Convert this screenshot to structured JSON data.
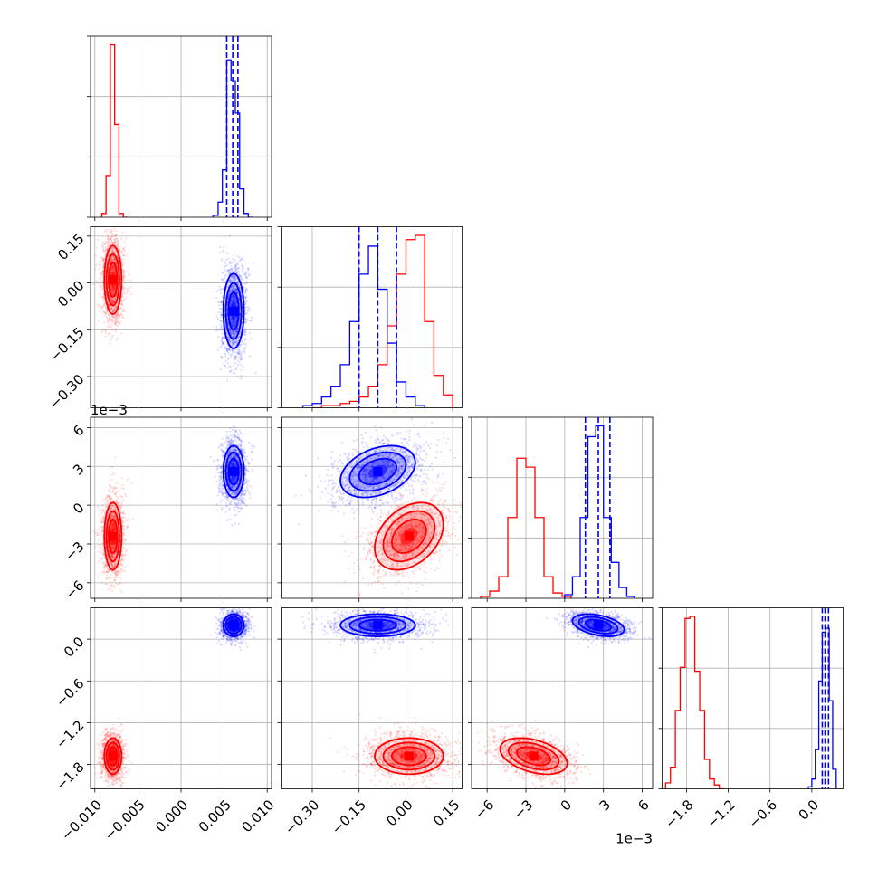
{
  "chart_data": {
    "type": "corner",
    "title": "",
    "grid": true,
    "legend": "none",
    "parameters": [
      {
        "name": "",
        "range": [
          -0.0105,
          0.0105
        ],
        "ticks": [
          -0.01,
          -0.005,
          0.0,
          0.005,
          0.01
        ],
        "tick_labels": [
          "−0.010",
          "−0.005",
          "0.000",
          "0.005",
          "0.010"
        ]
      },
      {
        "name": "",
        "range": [
          -0.4,
          0.18
        ],
        "ticks": [
          -0.3,
          -0.15,
          0.0,
          0.15
        ],
        "tick_labels": [
          "−0.30",
          "−0.15",
          "0.00",
          "0.15"
        ]
      },
      {
        "name": "",
        "range": [
          -0.0072,
          0.0068
        ],
        "ticks": [
          -0.006,
          -0.003,
          0.0,
          0.003,
          0.006
        ],
        "tick_labels": [
          "−6",
          "−3",
          "0",
          "3",
          "6"
        ],
        "offset_label": "1e−3"
      },
      {
        "name": "",
        "range": [
          -2.15,
          0.45
        ],
        "ticks": [
          -1.8,
          -1.2,
          -0.6,
          0.0
        ],
        "tick_labels": [
          "−1.8",
          "−1.2",
          "−0.6",
          "0.0"
        ]
      }
    ],
    "series": [
      {
        "name": "",
        "color": "#ff0000",
        "mean": [
          -0.0079,
          0.01,
          -0.0024,
          -1.68
        ],
        "std": [
          0.0005,
          0.055,
          0.0013,
          0.13
        ],
        "histograms": [
          {
            "edges": [
              -0.0092,
              -0.0087,
              -0.0082,
              -0.0077,
              -0.0072,
              -0.0067,
              -0.0062
            ],
            "counts": [
              0.02,
              0.22,
              0.91,
              0.49,
              0.02,
              0.0
            ]
          },
          {
            "edges": [
              -0.3,
              -0.27,
              -0.24,
              -0.21,
              -0.18,
              -0.15,
              -0.12,
              -0.09,
              -0.06,
              -0.03,
              0.0,
              0.03,
              0.06,
              0.09,
              0.12,
              0.15
            ],
            "counts": [
              0.0,
              0.01,
              0.01,
              0.02,
              0.03,
              0.05,
              0.1,
              0.2,
              0.38,
              0.62,
              0.78,
              0.8,
              0.4,
              0.15,
              0.06
            ]
          },
          {
            "edges": [
              -0.0065,
              -0.0058,
              -0.0051,
              -0.0044,
              -0.0037,
              -0.003,
              -0.0023,
              -0.0016,
              -0.0009,
              -0.0002,
              0.0005
            ],
            "counts": [
              0.01,
              0.04,
              0.12,
              0.45,
              0.78,
              0.73,
              0.45,
              0.12,
              0.03,
              0.01
            ]
          },
          {
            "edges": [
              -2.1,
              -2.03,
              -1.96,
              -1.89,
              -1.82,
              -1.75,
              -1.68,
              -1.61,
              -1.54,
              -1.47,
              -1.4,
              -1.33,
              -1.26
            ],
            "counts": [
              0.03,
              0.11,
              0.4,
              0.62,
              0.87,
              0.88,
              0.6,
              0.4,
              0.15,
              0.05,
              0.02,
              0.0
            ]
          }
        ]
      },
      {
        "name": "",
        "color": "#0000ff",
        "mean": [
          0.0061,
          -0.09,
          0.0026,
          0.2
        ],
        "std": [
          0.0006,
          0.06,
          0.001,
          0.08
        ],
        "quantiles_1d": [
          [
            0.0053,
            0.006,
            0.0066
          ],
          [
            -0.15,
            -0.09,
            -0.03
          ],
          [
            0.0016,
            0.0026,
            0.0035
          ],
          [
            0.15,
            0.19,
            0.24
          ]
        ],
        "histograms": [
          {
            "edges": [
              0.0037,
              0.0043,
              0.0048,
              0.0053,
              0.0058,
              0.0063,
              0.0068,
              0.0073,
              0.0078,
              0.0083
            ],
            "counts": [
              0.01,
              0.08,
              0.25,
              0.83,
              0.72,
              0.55,
              0.15,
              0.02,
              0.0
            ]
          },
          {
            "edges": [
              -0.33,
              -0.3,
              -0.27,
              -0.24,
              -0.21,
              -0.18,
              -0.15,
              -0.12,
              -0.09,
              -0.06,
              -0.03,
              0.0,
              0.03,
              0.06
            ],
            "counts": [
              0.01,
              0.02,
              0.05,
              0.1,
              0.2,
              0.4,
              0.62,
              0.75,
              0.55,
              0.3,
              0.12,
              0.05,
              0.01
            ]
          },
          {
            "edges": [
              0.0,
              0.0006,
              0.0012,
              0.0018,
              0.0024,
              0.003,
              0.0036,
              0.0042,
              0.0048,
              0.0054
            ],
            "counts": [
              0.02,
              0.12,
              0.45,
              0.9,
              0.96,
              0.45,
              0.2,
              0.06,
              0.01
            ]
          },
          {
            "edges": [
              -0.05,
              0.0,
              0.05,
              0.1,
              0.15,
              0.2,
              0.25,
              0.3,
              0.35
            ],
            "counts": [
              0.01,
              0.05,
              0.2,
              0.55,
              0.8,
              0.82,
              0.45,
              0.1
            ]
          }
        ]
      }
    ]
  }
}
